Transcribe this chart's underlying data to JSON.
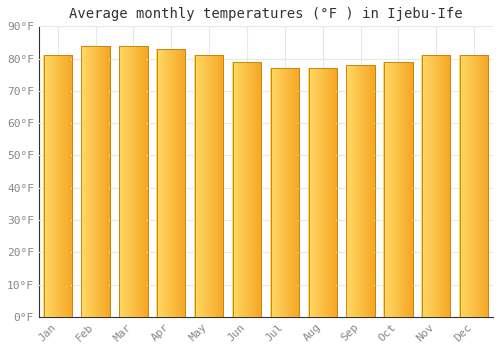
{
  "title": "Average monthly temperatures (°F ) in Ijebu-Ife",
  "months": [
    "Jan",
    "Feb",
    "Mar",
    "Apr",
    "May",
    "Jun",
    "Jul",
    "Aug",
    "Sep",
    "Oct",
    "Nov",
    "Dec"
  ],
  "values": [
    81,
    84,
    84,
    83,
    81,
    79,
    77,
    77,
    78,
    79,
    81,
    81
  ],
  "bar_color_left": "#FFD966",
  "bar_color_right": "#F5A623",
  "bar_edge_color": "#C8870A",
  "background_color": "#FFFFFF",
  "plot_bg_color": "#FFFFFF",
  "grid_color": "#E8E8E8",
  "ylim": [
    0,
    90
  ],
  "yticks": [
    0,
    10,
    20,
    30,
    40,
    50,
    60,
    70,
    80,
    90
  ],
  "tick_label_color": "#888888",
  "title_color": "#333333",
  "title_fontsize": 10,
  "tick_fontsize": 8,
  "bar_width": 0.75
}
